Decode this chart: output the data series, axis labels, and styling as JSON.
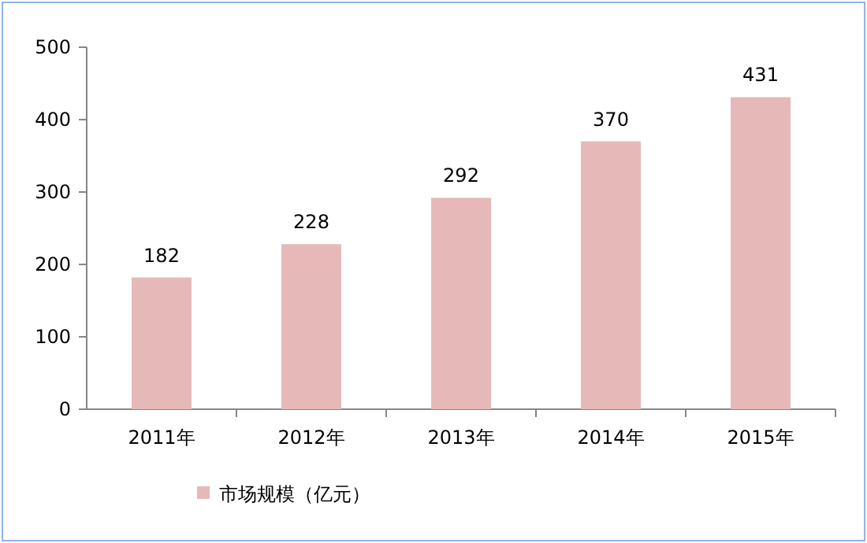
{
  "chart_data": {
    "type": "bar",
    "categories": [
      "2011年",
      "2012年",
      "2013年",
      "2014年",
      "2015年"
    ],
    "series": [
      {
        "name": "市场规模（亿元）",
        "color": "#e6b9b8",
        "values": [
          182,
          228,
          292,
          370,
          431
        ]
      }
    ],
    "ylim": [
      0,
      500
    ],
    "yticks": [
      0,
      100,
      200,
      300,
      400,
      500
    ],
    "data_labels": true,
    "legend": "bottom"
  }
}
